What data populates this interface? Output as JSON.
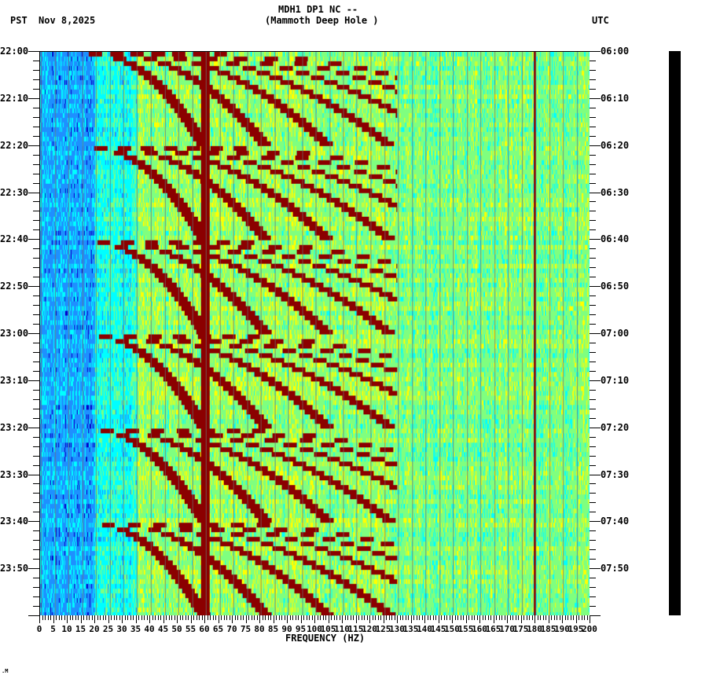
{
  "header": {
    "station": "MDH1 DP1 NC --",
    "site": "(Mammoth Deep Hole )",
    "left_tz": "PST",
    "date": "Nov 8,2025",
    "right_tz": "UTC"
  },
  "footer": {
    "mark": ".M"
  },
  "chart_data": {
    "type": "heatmap",
    "title": "MDH1 DP1 NC -- (Mammoth Deep Hole )",
    "subtitle": "Spectrogram, Nov 8,2025",
    "xlabel": "FREQUENCY (HZ)",
    "ylabel_left": "PST",
    "ylabel_right": "UTC",
    "xlim": [
      0,
      200
    ],
    "x_ticks": [
      0,
      5,
      10,
      15,
      20,
      25,
      30,
      35,
      40,
      45,
      50,
      55,
      60,
      65,
      70,
      75,
      80,
      85,
      90,
      95,
      100,
      105,
      110,
      115,
      120,
      125,
      130,
      135,
      140,
      145,
      150,
      155,
      160,
      165,
      170,
      175,
      180,
      185,
      190,
      195,
      200
    ],
    "y_ticks_left": [
      "22:00",
      "22:10",
      "22:20",
      "22:30",
      "22:40",
      "22:50",
      "23:00",
      "23:10",
      "23:20",
      "23:30",
      "23:40",
      "23:50"
    ],
    "y_ticks_right": [
      "06:00",
      "06:10",
      "06:20",
      "06:30",
      "06:40",
      "06:50",
      "07:00",
      "07:10",
      "07:20",
      "07:30",
      "07:40",
      "07:50"
    ],
    "time_range_pst": [
      "22:00",
      "24:00"
    ],
    "colormap": [
      "#0000c8",
      "#1e90ff",
      "#00ffff",
      "#7fff7f",
      "#ffff00",
      "#ff8c00",
      "#ff0000",
      "#8b0000"
    ],
    "features": [
      {
        "type": "persistent_line",
        "frequency_hz": 60,
        "color": "#8b0000"
      },
      {
        "type": "persistent_line",
        "frequency_hz": 180,
        "color": "#8b0000"
      },
      {
        "type": "gliding_harmonics",
        "period_min": 20,
        "start_times_pst": [
          "22:00",
          "22:20",
          "22:40",
          "23:00",
          "23:20",
          "23:40"
        ],
        "fundamental_start_hz": 20,
        "fundamental_end_hz": 60
      },
      {
        "type": "low_energy_band",
        "frequency_range_hz": [
          0,
          20
        ],
        "color": "#1e90ff"
      }
    ],
    "grid": true
  }
}
